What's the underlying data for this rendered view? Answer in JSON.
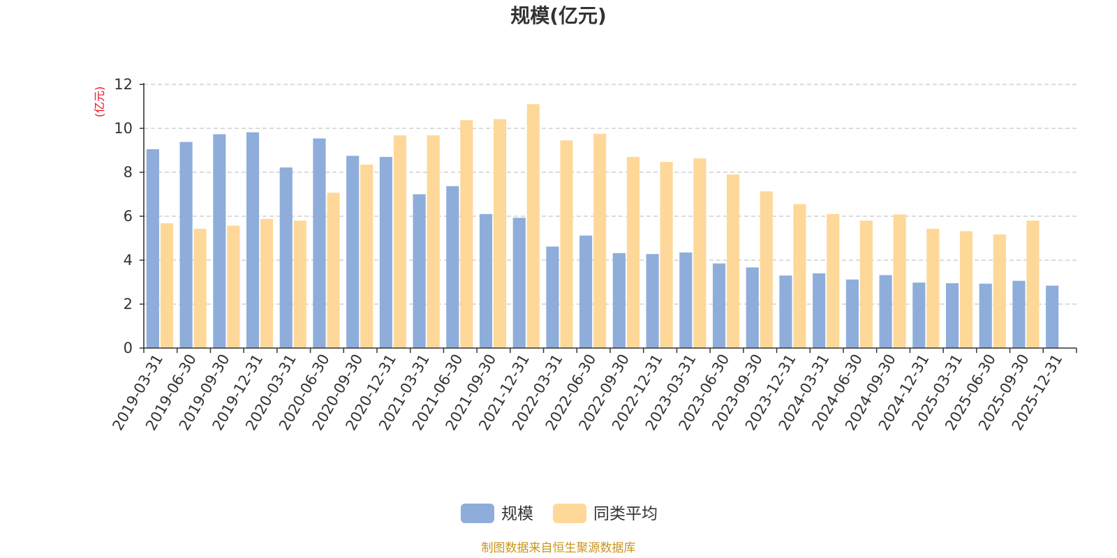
{
  "chart_data": {
    "type": "bar",
    "title": "规模(亿元)",
    "ylabel": "(亿元)",
    "ylim": [
      0,
      12
    ],
    "yticks": [
      0,
      2,
      4,
      6,
      8,
      10,
      12
    ],
    "grid": true,
    "legend_position": "bottom-center",
    "categories": [
      "2019-03-31",
      "2019-06-30",
      "2019-09-30",
      "2019-12-31",
      "2020-03-31",
      "2020-06-30",
      "2020-09-30",
      "2020-12-31",
      "2021-03-31",
      "2021-06-30",
      "2021-09-30",
      "2021-12-31",
      "2022-03-31",
      "2022-06-30",
      "2022-09-30",
      "2022-12-31",
      "2023-03-31",
      "2023-06-30",
      "2023-09-30",
      "2023-12-31",
      "2024-03-31",
      "2024-06-30",
      "2024-09-30",
      "2024-12-31",
      "2025-03-31",
      "2025-06-30",
      "2025-09-30",
      "2025-12-31"
    ],
    "series": [
      {
        "name": "规模",
        "color": "#8eadda",
        "values": [
          9.05,
          9.38,
          9.73,
          9.82,
          8.22,
          9.54,
          8.75,
          8.7,
          7.0,
          7.37,
          6.1,
          5.93,
          4.62,
          5.12,
          4.32,
          4.28,
          4.35,
          3.85,
          3.67,
          3.3,
          3.4,
          3.12,
          3.32,
          2.98,
          2.95,
          2.93,
          3.06,
          2.84
        ]
      },
      {
        "name": "同类平均",
        "color": "#fed899",
        "values": [
          5.68,
          5.43,
          5.57,
          5.88,
          5.8,
          7.07,
          8.35,
          9.68,
          9.68,
          10.37,
          10.42,
          11.1,
          9.45,
          9.75,
          8.7,
          8.47,
          8.63,
          7.9,
          7.13,
          6.55,
          6.1,
          5.8,
          6.08,
          5.43,
          5.32,
          5.17,
          5.8,
          null
        ]
      }
    ],
    "source": "制图数据来自恒生聚源数据库"
  }
}
